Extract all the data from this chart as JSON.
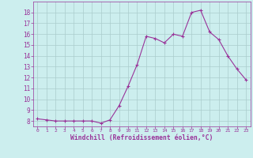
{
  "x": [
    0,
    1,
    2,
    3,
    4,
    5,
    6,
    7,
    8,
    9,
    10,
    11,
    12,
    13,
    14,
    15,
    16,
    17,
    18,
    19,
    20,
    21,
    22,
    23
  ],
  "y": [
    8.2,
    8.1,
    8.0,
    8.0,
    8.0,
    8.0,
    8.0,
    7.8,
    8.1,
    9.4,
    11.2,
    13.2,
    15.8,
    15.6,
    15.2,
    16.0,
    15.8,
    18.0,
    18.2,
    16.2,
    15.5,
    14.0,
    12.8,
    11.8
  ],
  "line_color": "#993399",
  "marker": "+",
  "bg_color": "#cceeee",
  "grid_color": "#aacccc",
  "xlabel": "Windchill (Refroidissement éolien,°C)",
  "xlabel_color": "#993399",
  "tick_color": "#993399",
  "ylim": [
    7.5,
    19.0
  ],
  "xlim": [
    -0.5,
    23.5
  ],
  "yticks": [
    8,
    9,
    10,
    11,
    12,
    13,
    14,
    15,
    16,
    17,
    18
  ],
  "xticks": [
    0,
    1,
    2,
    3,
    4,
    5,
    6,
    7,
    8,
    9,
    10,
    11,
    12,
    13,
    14,
    15,
    16,
    17,
    18,
    19,
    20,
    21,
    22,
    23
  ]
}
